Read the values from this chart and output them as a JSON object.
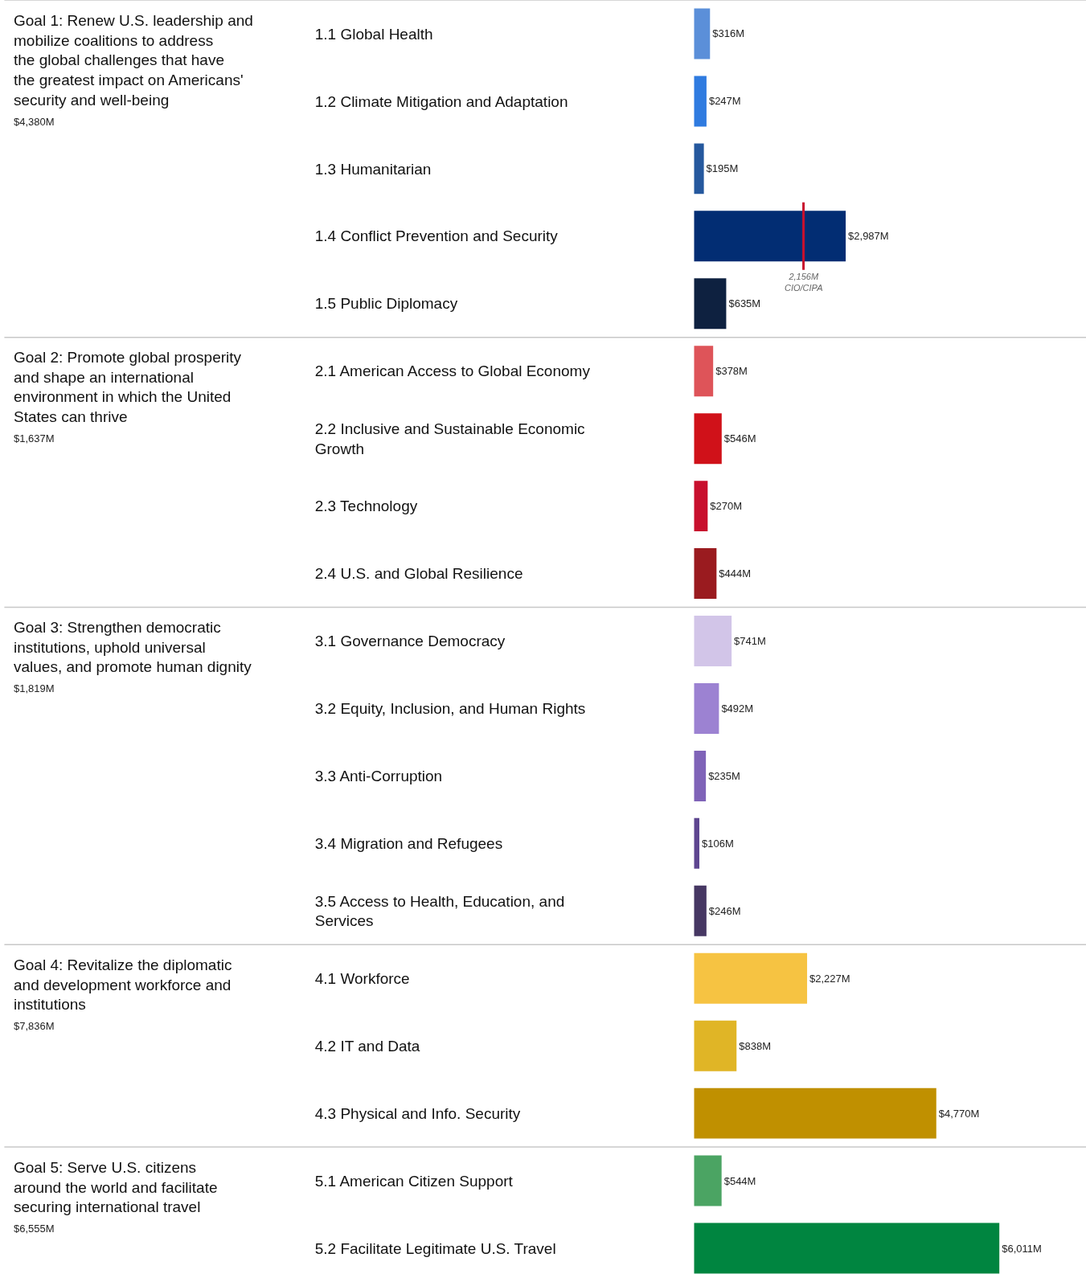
{
  "chart_data": {
    "type": "bar",
    "orientation": "horizontal",
    "tick_labels": "y",
    "legend": false,
    "categories": [
      "1.1 Global Health",
      "1.2 Climate Mitigation and Adaptation",
      "1.3 Humanitarian",
      "1.4 Conflict Prevention and Security",
      "1.5 Public Diplomacy",
      "2.1 American Access to Global Economy",
      "2.2 Inclusive and Sustainable Economic Growth",
      "2.3 Technology",
      "2.4 U.S. and Global Resilience",
      "3.1 Governance Democracy",
      "3.2 Equity, Inclusion, and Human Rights",
      "3.3 Anti-Corruption",
      "3.4 Migration and Refugees",
      "3.5 Access to Health, Education, and Services",
      "4.1 Workforce",
      "4.2 IT and Data",
      "4.3 Physical and Info. Security",
      "5.1 American Citizen Support",
      "5.2 Facilitate Legitimate U.S. Travel"
    ],
    "values": [
      316,
      247,
      195,
      2987,
      635,
      378,
      546,
      270,
      444,
      741,
      492,
      235,
      106,
      246,
      2227,
      838,
      4770,
      544,
      6011
    ],
    "value_labels": [
      "$316M",
      "$247M",
      "$195M",
      "$2,987M",
      "$635M",
      "$378M",
      "$546M",
      "$270M",
      "$444M",
      "$741M",
      "$492M",
      "$235M",
      "$106M",
      "$246M",
      "$2,227M",
      "$838M",
      "$4,770M",
      "$544M",
      "$6,011M"
    ],
    "colors": [
      "#5b8fd9",
      "#2f7be0",
      "#25589e",
      "#022d73",
      "#0e2140",
      "#de5459",
      "#d01119",
      "#c8102e",
      "#9a1b1f",
      "#d2c5e8",
      "#9c82d2",
      "#7f63b8",
      "#5e4690",
      "#463763",
      "#f6c342",
      "#e0b526",
      "#c09000",
      "#4ba463",
      "#008540"
    ],
    "ref_lines": [
      {
        "axis": "x",
        "value": 2156,
        "label": "2,156M CIO/CIPA",
        "color": "#c8102e"
      }
    ],
    "annotations": [
      "Goal 1: Renew U.S. leadership and mobilize coalitions to address the global challenges that have the greatest impact on Americans' security and well-being",
      "$4,380M",
      "Goal 2: Promote global prosperity and shape an international environment in which the United States can thrive",
      "$1,637M",
      "Goal 3: Strengthen democratic institutions, uphold universal values, and promote human dignity",
      "$1,819M",
      "Goal 4: Revitalize the diplomatic and development workforce and institutions",
      "$7,836M",
      "Goal 5: Serve U.S. citizens around the world and facilitate securing international travel",
      "$6,555M"
    ]
  }
}
